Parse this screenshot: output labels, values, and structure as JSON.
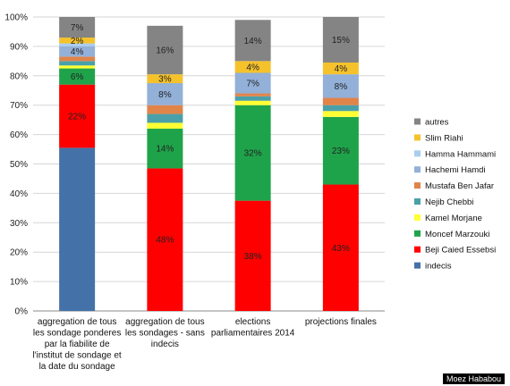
{
  "chart_data": {
    "type": "bar",
    "stacked": true,
    "categories": [
      [
        "aggregation de tous",
        "les sondage ponderes",
        "par la fiabilite de",
        "l'institut de sondage et",
        "la date du sondage"
      ],
      [
        "aggregation de tous",
        "les sondages - sans",
        "indecis"
      ],
      [
        "elections",
        "parliamentaires 2014"
      ],
      [
        "projections finales"
      ]
    ],
    "ylim": [
      0,
      100
    ],
    "ytick_labels": [
      "0%",
      "10%",
      "20%",
      "30%",
      "40%",
      "50%",
      "60%",
      "70%",
      "80%",
      "90%",
      "100%"
    ],
    "grid": true,
    "legend_position": "right",
    "series": [
      {
        "name": "indecis",
        "color": "#4472a8",
        "values": [
          55.5,
          0,
          0,
          0
        ],
        "labels": [
          "",
          "",
          "",
          ""
        ]
      },
      {
        "name": "Beji Caied Essebsi",
        "color": "#ff0000",
        "values": [
          21.5,
          48.5,
          37.5,
          43
        ],
        "labels": [
          "22%",
          "48%",
          "38%",
          "43%"
        ]
      },
      {
        "name": "Moncef Marzouki",
        "color": "#1fa34a",
        "values": [
          5.5,
          13.5,
          32.5,
          23
        ],
        "labels": [
          "6%",
          "14%",
          "32%",
          "23%"
        ]
      },
      {
        "name": "Kamel Morjane",
        "color": "#ffff33",
        "values": [
          1,
          2,
          1.5,
          2
        ],
        "labels": [
          "",
          "",
          "",
          ""
        ]
      },
      {
        "name": "Nejib Chebbi",
        "color": "#4aa0a8",
        "values": [
          1.5,
          3,
          1.5,
          2
        ],
        "labels": [
          "",
          "",
          "",
          ""
        ]
      },
      {
        "name": "Mustafa Ben Jafar",
        "color": "#e0844a",
        "values": [
          1.5,
          3,
          1,
          2.5
        ],
        "labels": [
          "",
          "",
          "",
          ""
        ]
      },
      {
        "name": "Hachemi Hamdi",
        "color": "#92b0d8",
        "values": [
          3.5,
          7.5,
          7,
          8
        ],
        "labels": [
          "4%",
          "8%",
          "7%",
          "8%"
        ]
      },
      {
        "name": "Hamma Hammami",
        "color": "#aacdf0",
        "values": [
          1,
          0,
          0,
          0
        ],
        "labels": [
          "",
          "",
          "",
          ""
        ]
      },
      {
        "name": "Slim Riahi",
        "color": "#f5c22c",
        "values": [
          2,
          3,
          4,
          4
        ],
        "labels": [
          "2%",
          "3%",
          "4%",
          "4%"
        ]
      },
      {
        "name": "autres",
        "color": "#848484",
        "values": [
          7,
          16.5,
          14,
          15.5
        ],
        "labels": [
          "7%",
          "16%",
          "14%",
          "15%"
        ]
      }
    ]
  },
  "watermark": "Moez Hababou"
}
